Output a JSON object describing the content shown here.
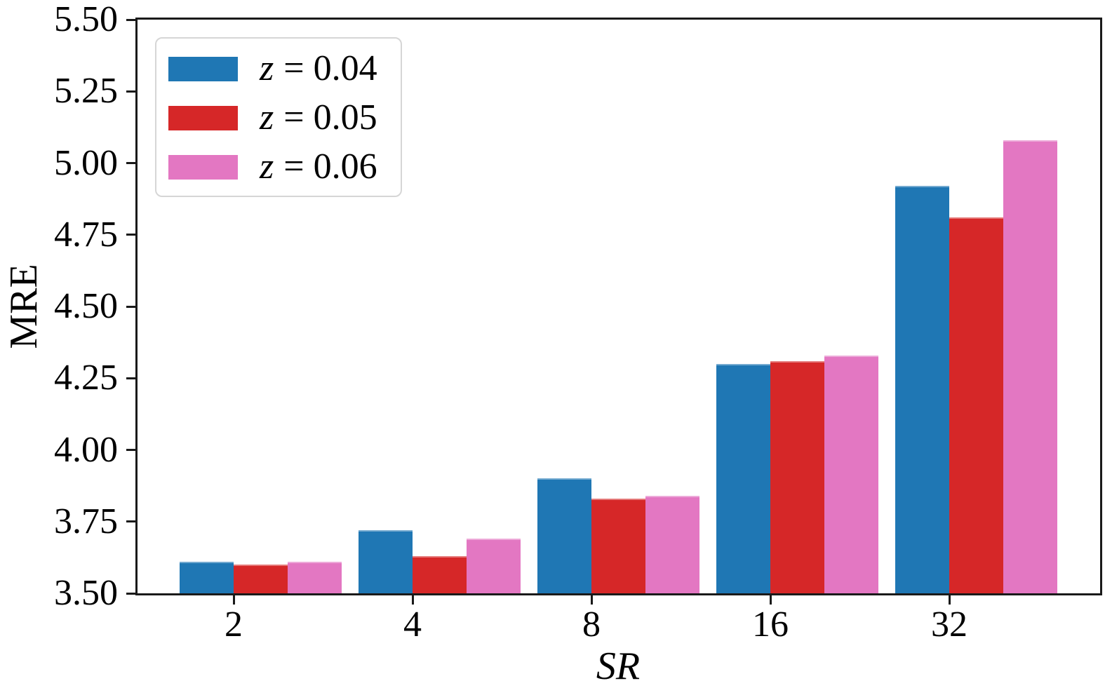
{
  "figure": {
    "background": "#ffffff",
    "spine_color": "#1a1a1a",
    "text_color": "#000000",
    "legend_border_color": "#d6d6d6"
  },
  "chart_data": {
    "type": "bar",
    "title": "",
    "xlabel": "SR",
    "ylabel": "MRE",
    "categories": [
      "2",
      "4",
      "8",
      "16",
      "32"
    ],
    "series": [
      {
        "name": "z = 0.04",
        "label_var": "z",
        "label_rest": "= 0.04",
        "color": "#1f77b4",
        "values": [
          3.61,
          3.72,
          3.9,
          4.3,
          4.92
        ]
      },
      {
        "name": "z = 0.05",
        "label_var": "z",
        "label_rest": "= 0.05",
        "color": "#d62728",
        "values": [
          3.6,
          3.63,
          3.83,
          4.31,
          4.81
        ]
      },
      {
        "name": "z = 0.06",
        "label_var": "z",
        "label_rest": "= 0.06",
        "color": "#e377c2",
        "values": [
          3.61,
          3.69,
          3.84,
          4.33,
          5.08
        ]
      }
    ],
    "ylim": [
      3.5,
      5.5
    ],
    "ytick_values": [
      5.5,
      5.25,
      5.0,
      4.75,
      4.5,
      4.25,
      4.0,
      3.75,
      3.5
    ],
    "ytick_labels": [
      "5.50",
      "5.25",
      "5.00",
      "4.75",
      "4.50",
      "4.25",
      "4.00",
      "3.75",
      "3.50"
    ],
    "xtick_labels": [
      "2",
      "4",
      "8",
      "16",
      "32"
    ],
    "legend_position": "upper left",
    "grid": false
  }
}
